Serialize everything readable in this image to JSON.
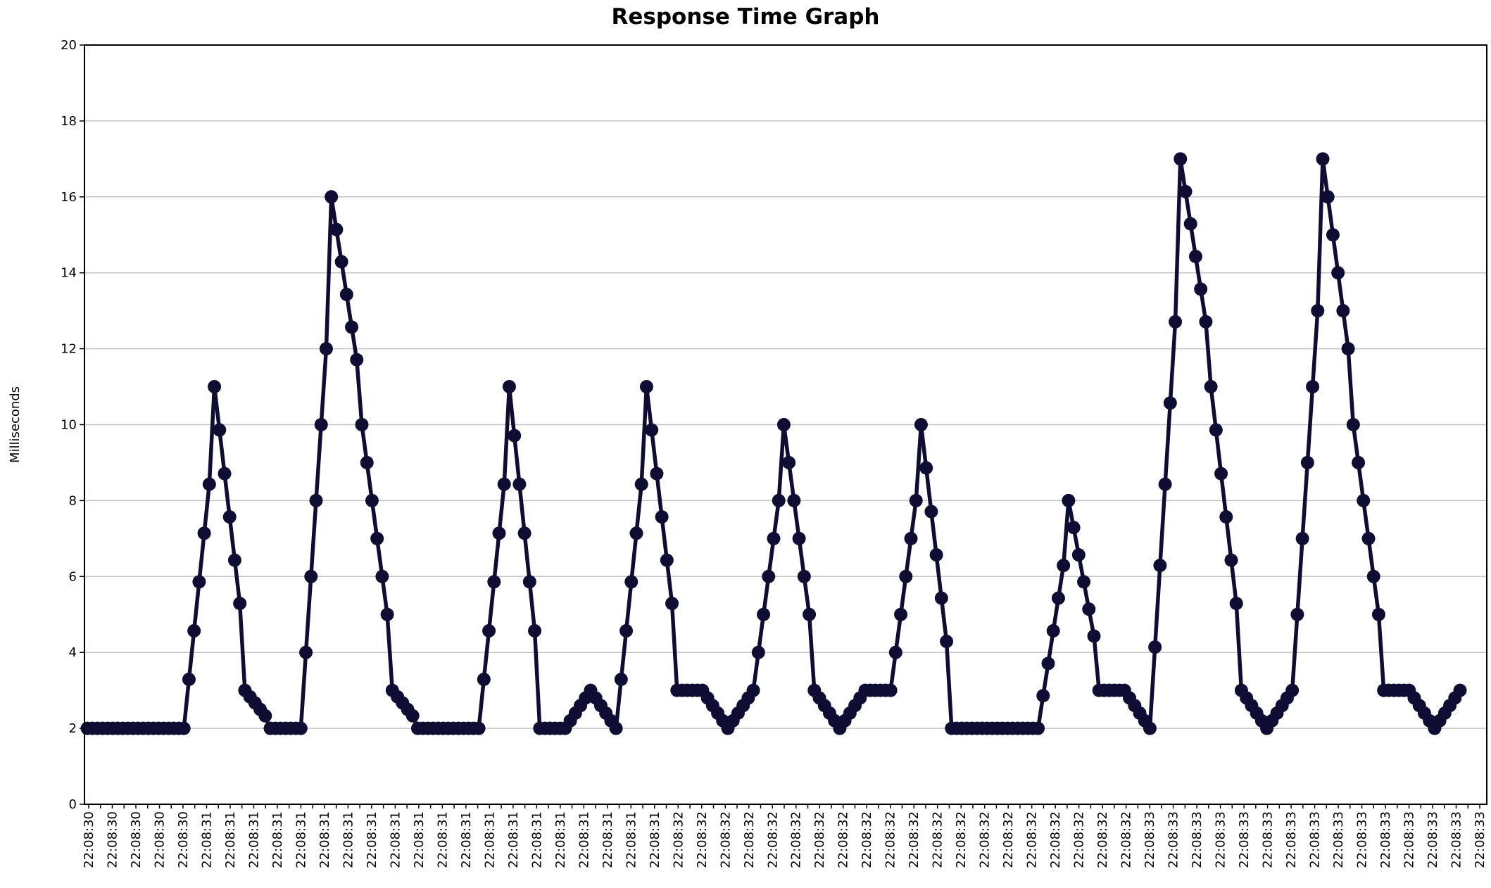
{
  "chart_data": {
    "type": "line",
    "title": "Response Time Graph",
    "xlabel": "",
    "ylabel": "Milliseconds",
    "ylim": [
      0,
      20
    ],
    "yticks": [
      0,
      2,
      4,
      6,
      8,
      10,
      12,
      14,
      16,
      18,
      20
    ],
    "grid": true,
    "legend": "none",
    "x_tick_labels": [
      "22:08:30",
      "22:08:30",
      "22:08:30",
      "22:08:30",
      "22:08:30",
      "22:08:31",
      "22:08:31",
      "22:08:31",
      "22:08:31",
      "22:08:31",
      "22:08:31",
      "22:08:31",
      "22:08:31",
      "22:08:31",
      "22:08:31",
      "22:08:31",
      "22:08:31",
      "22:08:31",
      "22:08:31",
      "22:08:31",
      "22:08:31",
      "22:08:31",
      "22:08:31",
      "22:08:31",
      "22:08:31",
      "22:08:32",
      "22:08:32",
      "22:08:32",
      "22:08:32",
      "22:08:32",
      "22:08:32",
      "22:08:32",
      "22:08:32",
      "22:08:32",
      "22:08:32",
      "22:08:32",
      "22:08:32",
      "22:08:32",
      "22:08:32",
      "22:08:32",
      "22:08:32",
      "22:08:32",
      "22:08:32",
      "22:08:32",
      "22:08:32",
      "22:08:33",
      "22:08:33",
      "22:08:33",
      "22:08:33",
      "22:08:33",
      "22:08:33",
      "22:08:33",
      "22:08:33",
      "22:08:33",
      "22:08:33",
      "22:08:33",
      "22:08:33",
      "22:08:33",
      "22:08:33",
      "22:08:33"
    ],
    "series_color": "#0f0d33",
    "series": [
      {
        "values": [
          2,
          2,
          2,
          2,
          2,
          2,
          2,
          2,
          2,
          2,
          2,
          2,
          2,
          2,
          2,
          2,
          2,
          2,
          2,
          2,
          3.29,
          4.57,
          5.86,
          7.14,
          8.43,
          11,
          9.86,
          8.71,
          7.57,
          6.43,
          5.29,
          3,
          2.83,
          2.67,
          2.5,
          2.33,
          2,
          2,
          2,
          2,
          2,
          2,
          2,
          4,
          6,
          8,
          10,
          12,
          16,
          15.14,
          14.29,
          13.43,
          12.57,
          11.71,
          10,
          9,
          8,
          7,
          6,
          5,
          3,
          2.83,
          2.67,
          2.5,
          2.33,
          2,
          2,
          2,
          2,
          2,
          2,
          2,
          2,
          2,
          2,
          2,
          2,
          2,
          3.29,
          4.57,
          5.86,
          7.14,
          8.43,
          11,
          9.71,
          8.43,
          7.14,
          5.86,
          4.57,
          2,
          2,
          2,
          2,
          2,
          2,
          2.2,
          2.4,
          2.6,
          2.8,
          3,
          2.8,
          2.6,
          2.4,
          2.2,
          2,
          3.29,
          4.57,
          5.86,
          7.14,
          8.43,
          11,
          9.86,
          8.71,
          7.57,
          6.43,
          5.29,
          3,
          3,
          3,
          3,
          3,
          3,
          2.8,
          2.6,
          2.4,
          2.2,
          2,
          2.2,
          2.4,
          2.6,
          2.8,
          3,
          4,
          5,
          6,
          7,
          8,
          10,
          9,
          8,
          7,
          6,
          5,
          3,
          2.8,
          2.6,
          2.4,
          2.2,
          2,
          2.2,
          2.4,
          2.6,
          2.8,
          3,
          3,
          3,
          3,
          3,
          3,
          4,
          5,
          6,
          7,
          8,
          10,
          8.86,
          7.71,
          6.57,
          5.43,
          4.29,
          2,
          2,
          2,
          2,
          2,
          2,
          2,
          2,
          2,
          2,
          2,
          2,
          2,
          2,
          2,
          2,
          2,
          2,
          2.86,
          3.71,
          4.57,
          5.43,
          6.29,
          8,
          7.29,
          6.57,
          5.86,
          5.14,
          4.43,
          3,
          3,
          3,
          3,
          3,
          3,
          2.8,
          2.6,
          2.4,
          2.2,
          2,
          4.14,
          6.29,
          8.43,
          10.57,
          12.71,
          17,
          16.14,
          15.29,
          14.43,
          13.57,
          12.71,
          11,
          9.86,
          8.71,
          7.57,
          6.43,
          5.29,
          3,
          2.8,
          2.6,
          2.4,
          2.2,
          2,
          2.2,
          2.4,
          2.6,
          2.8,
          3,
          5,
          7,
          9,
          11,
          13,
          17,
          16,
          15,
          14,
          13,
          12,
          10,
          9,
          8,
          7,
          6,
          5,
          3,
          3,
          3,
          3,
          3,
          3,
          2.8,
          2.6,
          2.4,
          2.2,
          2,
          2.2,
          2.4,
          2.6,
          2.8,
          3
        ]
      }
    ]
  }
}
